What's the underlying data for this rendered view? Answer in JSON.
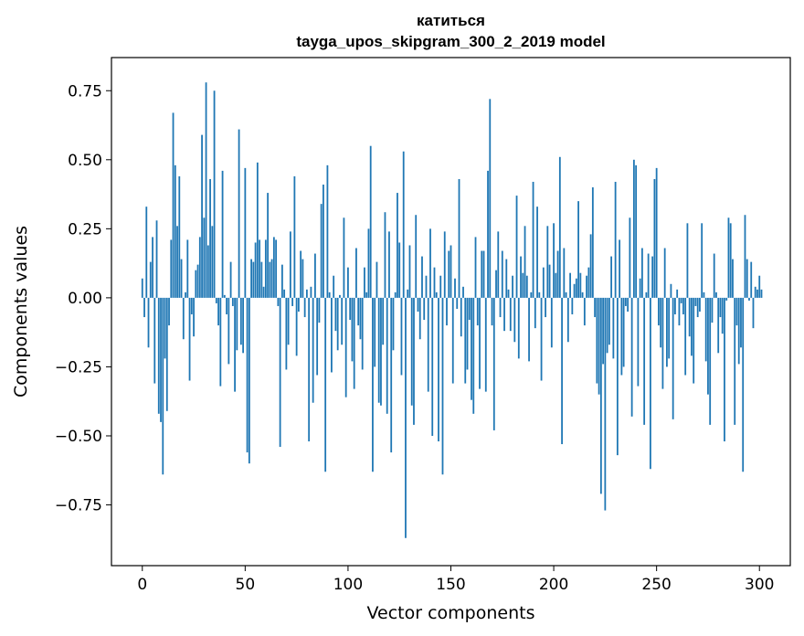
{
  "chart_data": {
    "type": "bar",
    "title_line1": "катиться",
    "title_line2": "tayga_upos_skipgram_300_2_2019 model",
    "xlabel": "Vector components",
    "ylabel": "Components values",
    "xlim": [
      -15,
      315
    ],
    "ylim": [
      -0.97,
      0.87
    ],
    "x_ticks": [
      0,
      50,
      100,
      150,
      200,
      250,
      300
    ],
    "y_ticks": [
      -0.75,
      -0.5,
      -0.25,
      0.0,
      0.25,
      0.5,
      0.75
    ],
    "x_tick_labels": [
      "0",
      "50",
      "100",
      "150",
      "200",
      "250",
      "300"
    ],
    "y_tick_labels": [
      "−0.75",
      "−0.50",
      "−0.25",
      "0.00",
      "0.25",
      "0.50",
      "0.75"
    ],
    "bar_color": "#1f77b4",
    "values": [
      0.07,
      -0.07,
      0.33,
      -0.18,
      0.13,
      0.22,
      -0.31,
      0.28,
      -0.42,
      -0.45,
      -0.64,
      -0.22,
      -0.41,
      -0.1,
      0.21,
      0.67,
      0.48,
      0.26,
      0.44,
      0.14,
      -0.15,
      0.02,
      0.21,
      -0.3,
      -0.06,
      -0.14,
      0.1,
      0.12,
      0.22,
      0.59,
      0.29,
      0.78,
      0.19,
      0.43,
      0.26,
      0.75,
      -0.02,
      -0.1,
      -0.32,
      0.46,
      0.01,
      -0.06,
      -0.24,
      0.13,
      -0.03,
      -0.34,
      -0.19,
      0.61,
      -0.17,
      -0.2,
      0.47,
      -0.56,
      -0.6,
      0.14,
      0.13,
      0.2,
      0.49,
      0.21,
      0.13,
      0.04,
      0.21,
      0.38,
      0.13,
      0.14,
      0.22,
      0.21,
      -0.03,
      -0.54,
      0.12,
      0.03,
      -0.26,
      -0.17,
      0.24,
      -0.03,
      0.44,
      -0.21,
      -0.05,
      0.17,
      0.14,
      -0.07,
      0.03,
      -0.52,
      0.04,
      -0.38,
      0.16,
      -0.28,
      -0.09,
      0.34,
      0.41,
      -0.63,
      0.48,
      0.02,
      -0.27,
      0.08,
      -0.12,
      -0.19,
      0.01,
      -0.17,
      0.29,
      -0.36,
      0.11,
      -0.08,
      -0.23,
      -0.33,
      0.18,
      -0.1,
      -0.15,
      -0.26,
      0.11,
      0.02,
      0.25,
      0.55,
      -0.63,
      -0.25,
      0.13,
      -0.38,
      -0.39,
      -0.17,
      0.31,
      -0.42,
      0.24,
      -0.56,
      -0.19,
      0.02,
      0.38,
      0.2,
      -0.28,
      0.53,
      -0.87,
      0.03,
      0.19,
      -0.39,
      -0.46,
      0.3,
      -0.05,
      -0.15,
      0.15,
      -0.08,
      0.08,
      -0.34,
      0.25,
      -0.5,
      0.11,
      0.02,
      -0.52,
      0.08,
      -0.64,
      0.24,
      -0.1,
      0.17,
      0.19,
      -0.31,
      0.07,
      -0.04,
      0.43,
      -0.14,
      0.04,
      -0.31,
      -0.26,
      -0.08,
      -0.37,
      -0.42,
      0.22,
      -0.1,
      -0.33,
      0.17,
      0.17,
      -0.34,
      0.46,
      0.72,
      -0.1,
      -0.48,
      0.1,
      0.24,
      -0.07,
      0.17,
      -0.12,
      0.14,
      0.03,
      -0.12,
      0.08,
      -0.16,
      0.37,
      -0.22,
      0.15,
      0.09,
      0.26,
      0.08,
      -0.23,
      0.02,
      0.42,
      -0.11,
      0.33,
      0.02,
      -0.3,
      0.11,
      -0.07,
      0.26,
      0.12,
      -0.18,
      0.27,
      0.09,
      0.17,
      0.51,
      -0.53,
      0.18,
      0.02,
      -0.16,
      0.09,
      -0.06,
      0.05,
      0.07,
      0.35,
      0.09,
      0.02,
      -0.1,
      0.08,
      0.11,
      0.23,
      0.4,
      -0.07,
      -0.31,
      -0.35,
      -0.71,
      -0.24,
      -0.77,
      -0.2,
      -0.17,
      0.15,
      -0.22,
      0.42,
      -0.57,
      0.21,
      -0.28,
      -0.25,
      -0.03,
      -0.05,
      0.29,
      -0.43,
      0.5,
      0.48,
      -0.32,
      0.07,
      0.18,
      -0.46,
      0.02,
      0.16,
      -0.62,
      0.15,
      0.43,
      0.47,
      -0.1,
      -0.18,
      -0.33,
      0.18,
      -0.25,
      -0.22,
      0.05,
      -0.44,
      -0.06,
      0.03,
      -0.1,
      -0.02,
      -0.06,
      -0.28,
      0.27,
      -0.14,
      -0.21,
      -0.31,
      -0.03,
      -0.07,
      -0.05,
      0.27,
      0.02,
      -0.23,
      -0.35,
      -0.46,
      -0.09,
      0.16,
      0.02,
      -0.2,
      -0.07,
      -0.13,
      -0.52,
      -0.01,
      0.29,
      0.27,
      0.14,
      -0.46,
      -0.1,
      -0.24,
      -0.18,
      -0.63,
      0.3,
      0.14,
      -0.01,
      0.13,
      -0.11,
      0.04,
      0.03,
      0.08,
      0.03
    ]
  }
}
